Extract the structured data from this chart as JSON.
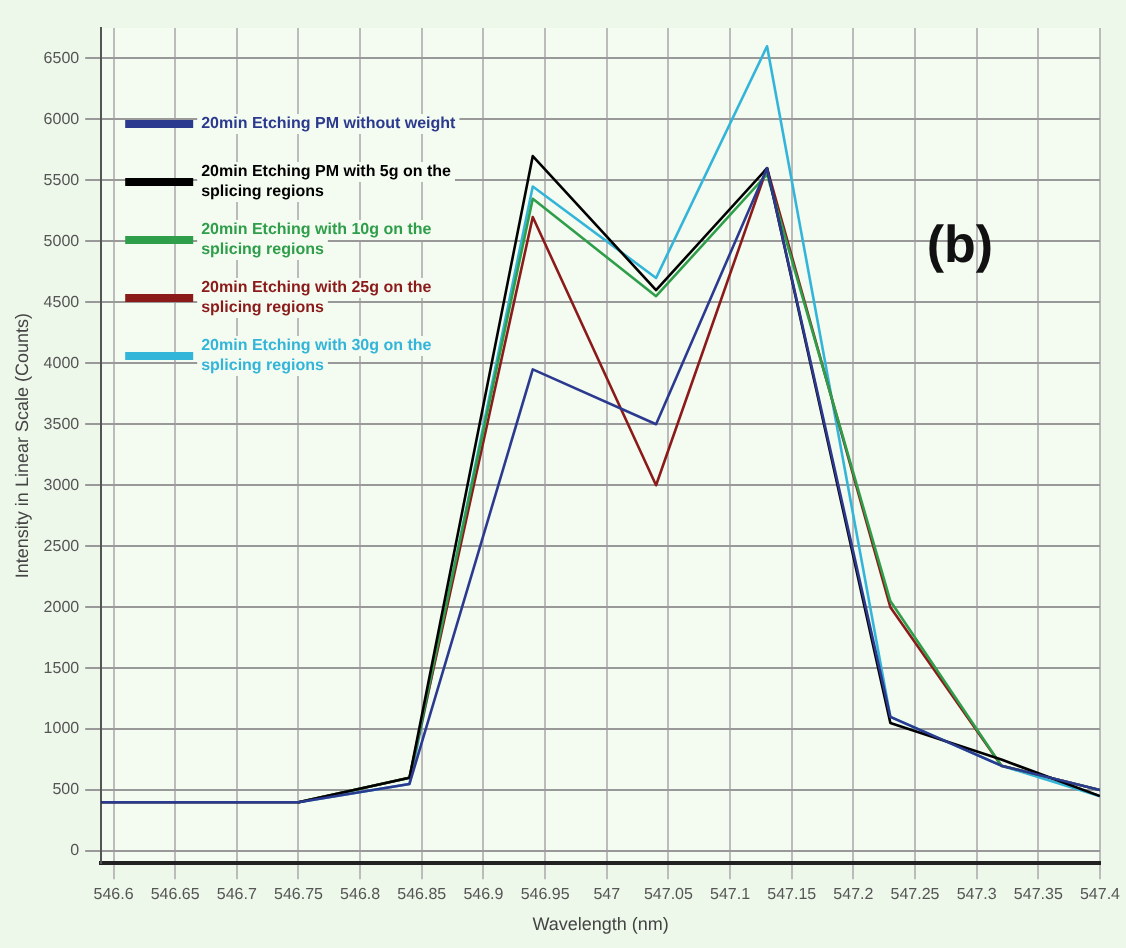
{
  "chart_data": {
    "type": "line",
    "xlabel": "Wavelength (nm)",
    "ylabel": "Intensity in Linear Scale (Counts)",
    "x": [
      546.59,
      546.65,
      546.75,
      546.84,
      546.94,
      547.04,
      547.13,
      547.23,
      547.32,
      547.4
    ],
    "series": [
      {
        "name": "20min Etching PM without weight",
        "color": "#2b3a8f",
        "values": [
          400,
          400,
          400,
          550,
          3950,
          3500,
          5600,
          1100,
          700,
          500
        ]
      },
      {
        "name": "20min Etching PM with 5g on the splicing regions",
        "color": "#000000",
        "values": [
          400,
          400,
          400,
          600,
          5700,
          4600,
          5600,
          1050,
          750,
          450
        ]
      },
      {
        "name": "20min Etching with 10g on the splicing regions",
        "color": "#2e9e4a",
        "values": [
          null,
          null,
          400,
          600,
          5350,
          4550,
          5550,
          2050,
          700,
          500
        ]
      },
      {
        "name": "20min Etching with 25g on the splicing regions",
        "color": "#8b1a1a",
        "values": [
          null,
          null,
          400,
          600,
          5200,
          3000,
          5600,
          2000,
          700,
          500
        ]
      },
      {
        "name": "20min Etching with 30g on the splicing regions",
        "color": "#33b5d9",
        "values": [
          null,
          null,
          400,
          550,
          5450,
          4700,
          6600,
          1100,
          700,
          450
        ]
      }
    ],
    "xlim": [
      546.59,
      547.4
    ],
    "xticks": [
      546.6,
      546.65,
      546.7,
      546.75,
      546.8,
      546.85,
      546.9,
      546.95,
      547.0,
      547.05,
      547.1,
      547.15,
      547.2,
      547.25,
      547.3,
      547.35,
      547.4
    ],
    "ylim": [
      -100,
      6750
    ],
    "yticks": [
      0,
      500,
      1000,
      1500,
      2000,
      2500,
      3000,
      3500,
      4000,
      4500,
      5000,
      5500,
      6000,
      6500
    ],
    "grid": true,
    "legend": "top left",
    "marker": "none",
    "line_style": "solid",
    "annotations": [
      "(b)"
    ]
  }
}
